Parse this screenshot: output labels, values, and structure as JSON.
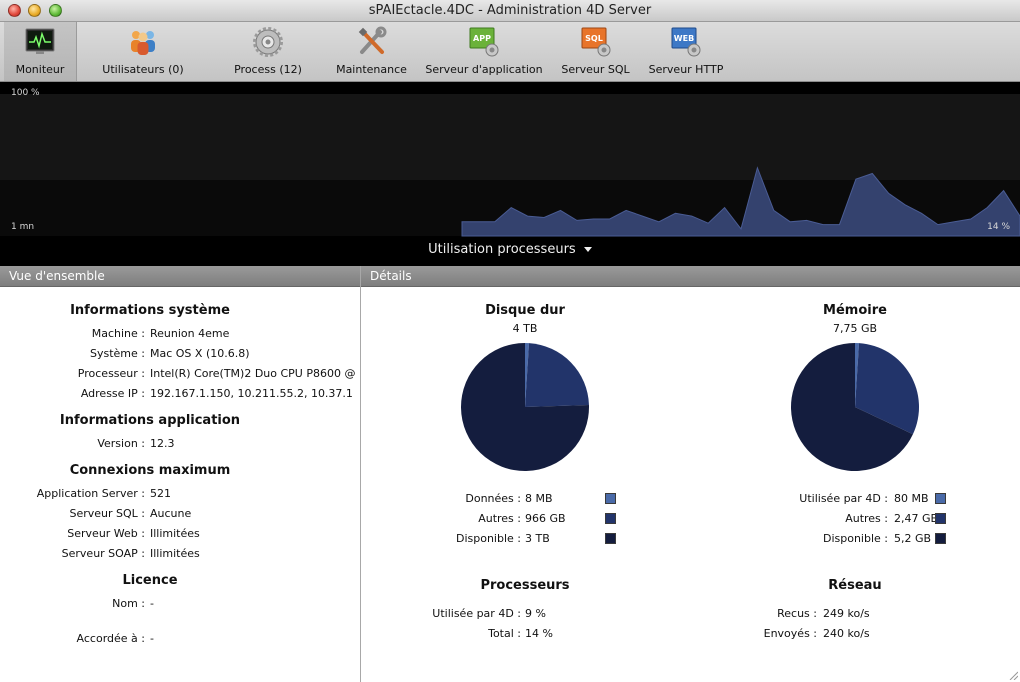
{
  "window": {
    "title": "sPAIEctacle.4DC - Administration 4D Server"
  },
  "toolbar": {
    "items": [
      {
        "label": "Moniteur",
        "icon": "monitor-icon"
      },
      {
        "label": "Utilisateurs (0)",
        "icon": "users-icon"
      },
      {
        "label": "Process (12)",
        "icon": "process-gear-icon"
      },
      {
        "label": "Maintenance",
        "icon": "tools-icon"
      },
      {
        "label": "Serveur d'application",
        "icon": "app-server-icon"
      },
      {
        "label": "Serveur SQL",
        "icon": "sql-server-icon"
      },
      {
        "label": "Serveur HTTP",
        "icon": "http-server-icon"
      }
    ],
    "badges": {
      "app": "APP",
      "sql": "SQL",
      "web": "WEB"
    }
  },
  "monitor": {
    "top_label": "100 %",
    "left_label": "1 mn",
    "right_label": "14 %",
    "selector_label": "Utilisation processeurs",
    "cpu_history": [
      10,
      10,
      10,
      20,
      14,
      13,
      18,
      11,
      12,
      12,
      18,
      14,
      10,
      16,
      14,
      9,
      20,
      5,
      48,
      18,
      10,
      11,
      8,
      8,
      40,
      44,
      30,
      22,
      16,
      8,
      10,
      12,
      20,
      32,
      14
    ]
  },
  "overview": {
    "header": "Vue d'ensemble",
    "system": {
      "title": "Informations système",
      "rows": [
        {
          "key": "Machine :",
          "value": "Reunion 4eme"
        },
        {
          "key": "Système :",
          "value": "Mac OS X (10.6.8)"
        },
        {
          "key": "Processeur :",
          "value": "Intel(R) Core(TM)2 Duo CPU P8600 @"
        },
        {
          "key": "Adresse IP :",
          "value": "192.167.1.150, 10.211.55.2, 10.37.1"
        }
      ]
    },
    "application": {
      "title": "Informations application",
      "rows": [
        {
          "key": "Version :",
          "value": "12.3"
        }
      ]
    },
    "connections": {
      "title": "Connexions maximum",
      "rows": [
        {
          "key": "Application Server :",
          "value": "521"
        },
        {
          "key": "Serveur SQL :",
          "value": "Aucune"
        },
        {
          "key": "Serveur Web :",
          "value": "Illimitées"
        },
        {
          "key": "Serveur SOAP :",
          "value": "Illimitées"
        }
      ]
    },
    "licence": {
      "title": "Licence",
      "rows": [
        {
          "key": "Nom :",
          "value": "-"
        },
        {
          "key": "Accordée à :",
          "value": "-"
        }
      ]
    }
  },
  "details": {
    "header": "Détails",
    "disk": {
      "title": "Disque dur",
      "total": "4 TB",
      "rows": [
        {
          "key": "Données :",
          "value": "8 MB",
          "color": "#4a6aa8"
        },
        {
          "key": "Autres :",
          "value": "966 GB",
          "color": "#22346a"
        },
        {
          "key": "Disponible :",
          "value": "3 TB",
          "color": "#141d3e"
        }
      ],
      "chart_data": {
        "type": "pie",
        "values": [
          0.01,
          0.235,
          0.755
        ]
      }
    },
    "memory": {
      "title": "Mémoire",
      "total": "7,75 GB",
      "rows": [
        {
          "key": "Utilisée par 4D :",
          "value": "80 MB",
          "color": "#4a6aa8"
        },
        {
          "key": "Autres :",
          "value": "2,47 GB",
          "color": "#22346a"
        },
        {
          "key": "Disponible :",
          "value": "5,2 GB",
          "color": "#141d3e"
        }
      ],
      "chart_data": {
        "type": "pie",
        "values": [
          0.01,
          0.31,
          0.68
        ]
      }
    },
    "processors": {
      "title": "Processeurs",
      "rows": [
        {
          "key": "Utilisée par 4D :",
          "value": "9 %"
        },
        {
          "key": "Total :",
          "value": "14 %"
        }
      ]
    },
    "network": {
      "title": "Réseau",
      "rows": [
        {
          "key": "Recus :",
          "value": "249 ko/s"
        },
        {
          "key": "Envoyés :",
          "value": "240 ko/s"
        }
      ]
    }
  }
}
